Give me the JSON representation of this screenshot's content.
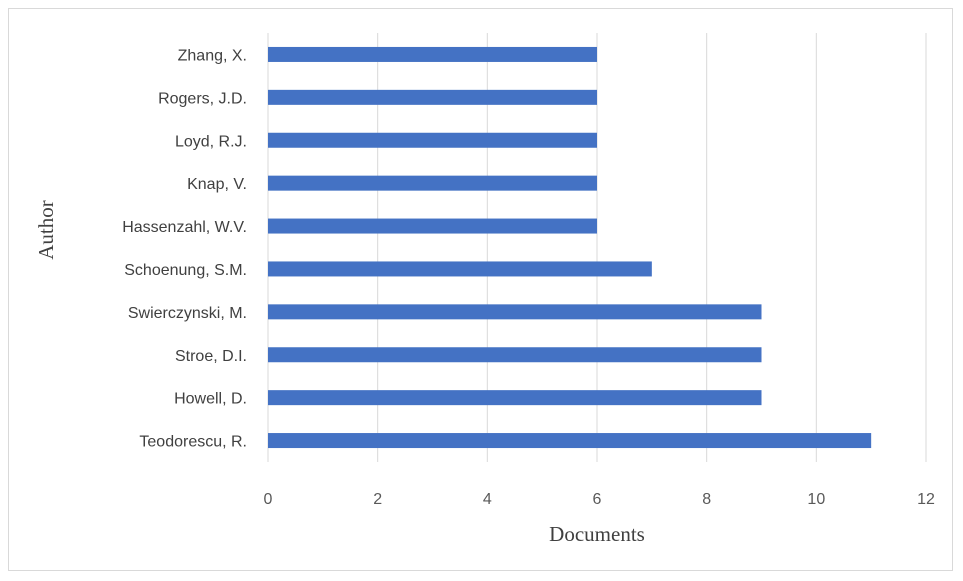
{
  "chart_data": {
    "type": "bar",
    "orientation": "horizontal",
    "title": "",
    "xlabel": "Documents",
    "ylabel": "Author",
    "xlim": [
      0,
      12
    ],
    "xticks": [
      0,
      2,
      4,
      6,
      8,
      10,
      12
    ],
    "grid": true,
    "legend": "none",
    "bar_color": "#4472c4",
    "categories": [
      "Zhang, X.",
      "Rogers, J.D.",
      "Loyd, R.J.",
      "Knap, V.",
      "Hassenzahl, W.V.",
      "Schoenung, S.M.",
      "Swierczynski, M.",
      "Stroe, D.I.",
      "Howell, D.",
      "Teodorescu, R."
    ],
    "values": [
      6,
      6,
      6,
      6,
      6,
      7,
      9,
      9,
      9,
      11
    ]
  }
}
